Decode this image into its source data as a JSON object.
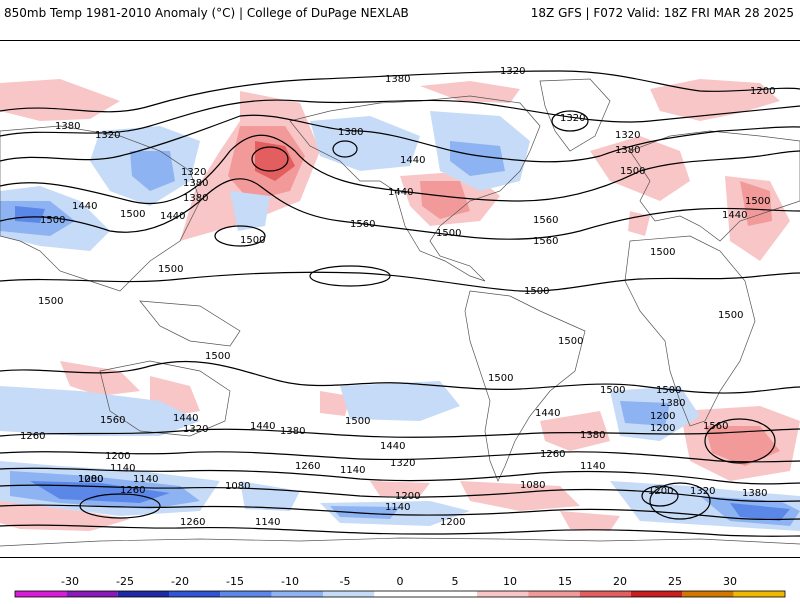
{
  "header": {
    "title": "850mb Temp 1981-2010 Anomaly (°C) | College of DuPage NEXLAB",
    "run_info": "18Z GFS | F072 Valid: 18Z FRI MAR 28 2025"
  },
  "map": {
    "contour_labels": [
      "1200",
      "1380",
      "1320",
      "1380",
      "1320",
      "1320",
      "1380",
      "1320",
      "1380",
      "1380",
      "1380",
      "1320",
      "1500",
      "1500",
      "1440",
      "1500",
      "1440",
      "1440",
      "1500",
      "1440",
      "1560",
      "1500",
      "1440",
      "1560",
      "1500",
      "1500",
      "1560",
      "1500",
      "1500",
      "1500",
      "1500",
      "1500",
      "1500",
      "1500",
      "1500",
      "1440",
      "1560",
      "1560",
      "1440",
      "1320",
      "1200",
      "1260",
      "1440",
      "1320",
      "1380",
      "1500",
      "1380",
      "1500",
      "1200",
      "1140",
      "1080",
      "1140",
      "1260",
      "1080",
      "1200",
      "1260",
      "1140",
      "1200",
      "1140",
      "1080",
      "1260",
      "1200",
      "1140",
      "1140",
      "1260",
      "1200",
      "1320",
      "1380",
      "1200",
      "1440",
      "1380"
    ]
  },
  "colorbar": {
    "ticks": [
      "-30",
      "-25",
      "-20",
      "-15",
      "-10",
      "-5",
      "0",
      "5",
      "10",
      "15",
      "20",
      "25",
      "30"
    ],
    "colors": [
      "#d81dd8",
      "#8a19b8",
      "#1f2aa6",
      "#2f55d4",
      "#5a87e8",
      "#8db3f2",
      "#c6dbf7",
      "#ffffff",
      "#ffffff",
      "#f8c6c6",
      "#f29a9a",
      "#e35e5e",
      "#c81e1e",
      "#d27800",
      "#f0b800"
    ]
  }
}
